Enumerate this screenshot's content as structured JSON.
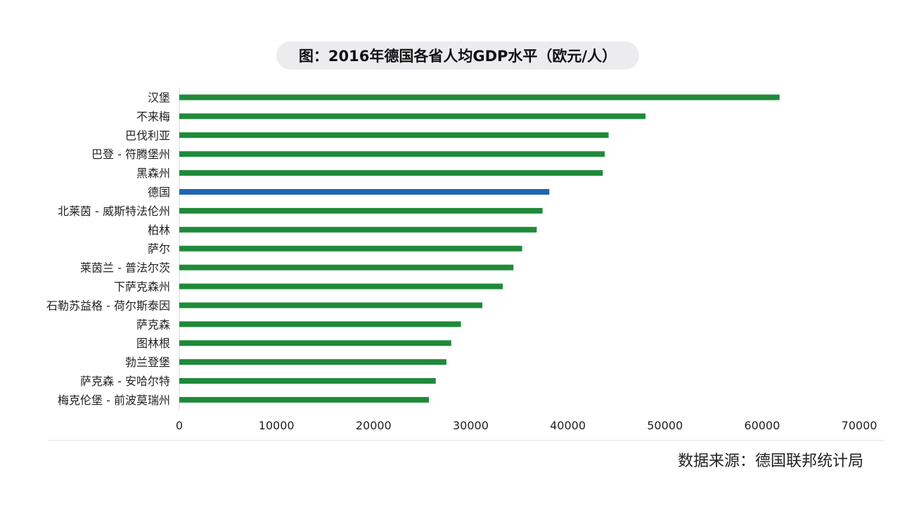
{
  "chart_data": {
    "type": "bar",
    "orientation": "horizontal",
    "title": "图：2016年德国各省人均GDP水平（欧元/人）",
    "categories": [
      "汉堡",
      "不来梅",
      "巴伐利亚",
      "巴登 - 符腾堡州",
      "黑森州",
      "德国",
      "北莱茵 - 威斯特法伦州",
      "柏林",
      "萨尔",
      "莱茵兰 - 普法尔茨",
      "下萨克森州",
      "石勒苏益格 - 荷尔斯泰因",
      "萨克森",
      "图林根",
      "勃兰登堡",
      "萨克森 - 安哈尔特",
      "梅克伦堡 - 前波莫瑞州"
    ],
    "values": [
      61800,
      48000,
      44200,
      43800,
      43600,
      38100,
      37400,
      36800,
      35300,
      34400,
      33300,
      31200,
      29000,
      28000,
      27500,
      26400,
      25700
    ],
    "highlight": "德国",
    "colors": {
      "default": "#1f8a3a",
      "highlight": "#1f66b3"
    },
    "xlim": [
      0,
      70000
    ],
    "xticks": [
      0,
      10000,
      20000,
      30000,
      40000,
      50000,
      60000,
      70000
    ],
    "xlabel": "",
    "ylabel": "",
    "grid": false
  },
  "footer": {
    "source": "数据来源：德国联邦统计局"
  }
}
